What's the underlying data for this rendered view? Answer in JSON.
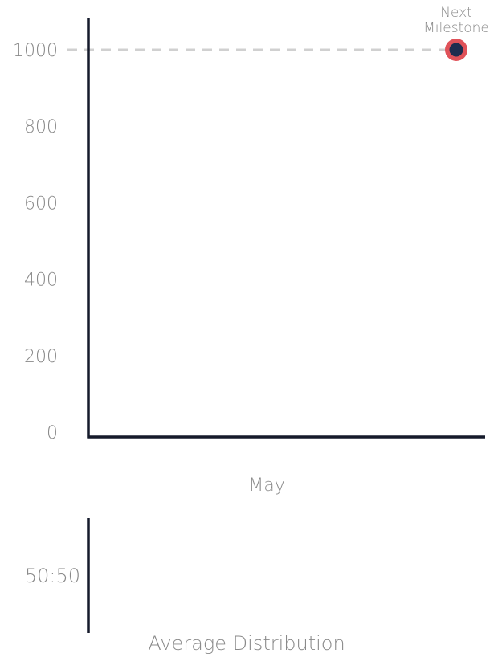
{
  "chart_data": [
    {
      "type": "scatter",
      "y_ticks": [
        0,
        200,
        400,
        600,
        800,
        1000
      ],
      "ylim": [
        0,
        1000
      ],
      "xlabel": "May",
      "reference_line": {
        "y": 1000,
        "style": "dashed"
      },
      "points": [
        {
          "label": "Next Milestone",
          "y": 1000
        }
      ],
      "annotation_lines": [
        "Next",
        "Milestone"
      ],
      "colors": {
        "axis": "#151a2b",
        "tick_text": "#8a8a8a",
        "reference_line": "#d0d0d0",
        "point_fill": "#1f2d4f",
        "point_ring": "#e05259"
      }
    },
    {
      "type": "other",
      "value_label": "50:50",
      "xlabel": "Average Distribution"
    }
  ]
}
